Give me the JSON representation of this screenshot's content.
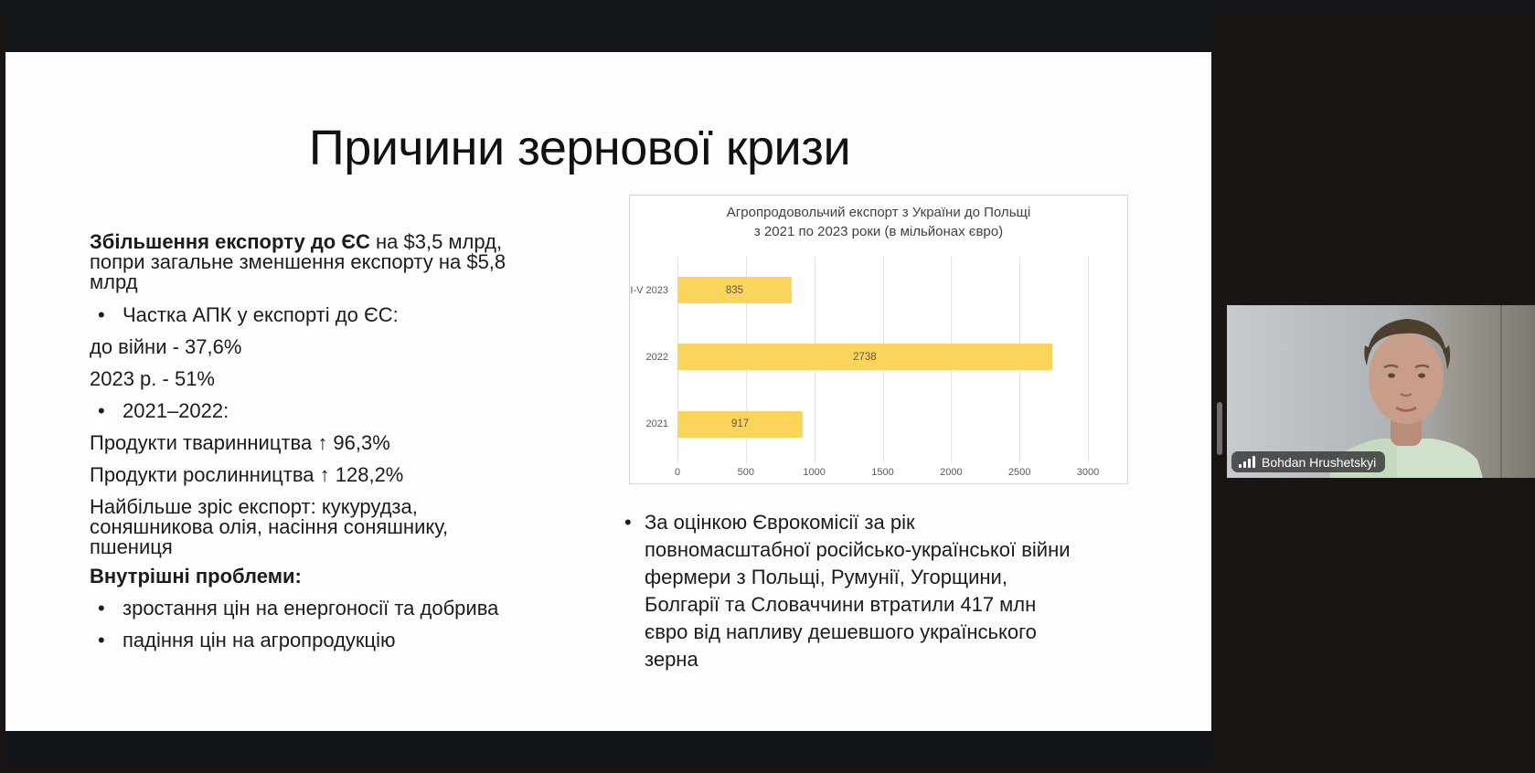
{
  "app": {
    "bullet_char": "•"
  },
  "slide": {
    "title": "Причини зернової кризи",
    "left_column": {
      "lead_bold": "Збільшення експорту до ЄС",
      "lead_rest": " на $3,5 млрд, попри загальне зменшення експорту на $5,8 млрд",
      "bullet_apk": "Частка АПК у експорті до ЄС:",
      "line_prewar": "до війни - 37,6%",
      "line_2023": "2023 р. - 51%",
      "bullet_years": "2021–2022:",
      "line_livestock": "Продукти тваринництва ↑ 96,3%",
      "line_crops": "Продукти рослинництва ↑ 128,2%",
      "line_top_exports": "Найбільше зріс експорт: кукурудза, соняшникова олія, насіння соняшнику, пшениця",
      "heading_internal": "Внутрішні проблеми:",
      "bullet_energy": "зростання цін на енергоносії та добрива",
      "bullet_prices": "падіння цін на агропродукцію"
    },
    "right_column": {
      "bullet_text": "За оцінкою Єврокомісії за рік повномасштабної російсько-української війни фермери з Польщі, Румунії, Угорщини, Болгарії та Словаччини втратили 417 млн євро від напливу дешевшого українського зерна"
    }
  },
  "chart_data": {
    "type": "bar",
    "orientation": "horizontal",
    "title": "Агропродовольчий експорт з України до Польщі з 2021 по 2023 роки (в мільйонах євро)",
    "title_lines": [
      "Агропродовольчий експорт з України до Польщі",
      "з 2021 по 2023 роки (в мільйонах євро)"
    ],
    "categories": [
      "I-V 2023",
      "2022",
      "2021"
    ],
    "values": [
      835,
      2738,
      917
    ],
    "xlabel": "",
    "ylabel": "",
    "xlim": [
      0,
      3000
    ],
    "xticks": [
      0,
      500,
      1000,
      1500,
      2000,
      2500,
      3000
    ],
    "grid": true,
    "legend_position": "none",
    "bar_color": "#FBD45C",
    "value_label_color": "#5A5A5A"
  },
  "webcam": {
    "participant_name": "Bohdan Hrushetskyi",
    "audio_icon": "audio-level-bars"
  },
  "colors": {
    "slide_bg": "#FDFDFE",
    "text": "#1A1A1A",
    "frame_dark": "#14171B",
    "frame_brown": "#1A1512",
    "accent_yellow": "#FBD45C"
  }
}
